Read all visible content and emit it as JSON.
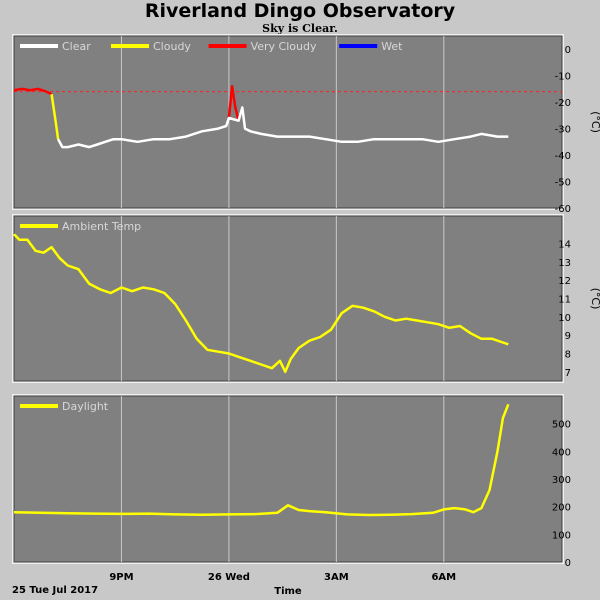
{
  "title": "Riverland Dingo Observatory",
  "subtitle": "Sky is Clear.",
  "date_label": "25 Tue Jul 2017",
  "x_axis_title": "Time",
  "colors": {
    "panel": "#808080",
    "grid": "#c8c8c8",
    "threshold": "#ff2020",
    "clear": "#ffffff",
    "cloudy": "#ffff00",
    "very_cloudy": "#ff0000",
    "wet": "#0000ff"
  },
  "chart_data": [
    {
      "type": "line",
      "panel": "sky",
      "ylim": [
        -60,
        5
      ],
      "yticks": [
        0,
        -10,
        -20,
        -30,
        -40,
        -50,
        -60
      ],
      "ylabel": "(°C)",
      "xlim": [
        0,
        10.2
      ],
      "xticks": [
        {
          "x": 2,
          "label": "9PM"
        },
        {
          "x": 4,
          "label": "26 Wed"
        },
        {
          "x": 6,
          "label": "3AM"
        },
        {
          "x": 8,
          "label": "6AM"
        }
      ],
      "legend": [
        "Clear",
        "Cloudy",
        "Very Cloudy",
        "Wet"
      ],
      "threshold": -16,
      "series": [
        {
          "name": "Very Cloudy",
          "color": "#ff0000",
          "x": [
            0.0,
            0.15,
            0.3,
            0.45,
            0.6,
            0.7
          ],
          "y": [
            -15.5,
            -15.0,
            -15.5,
            -15.0,
            -16.0,
            -17.0
          ]
        },
        {
          "name": "Very Cloudy",
          "color": "#ff0000",
          "x": [
            4.0,
            4.06,
            4.12,
            4.18
          ],
          "y": [
            -26.0,
            -14.0,
            -22.0,
            -27.0
          ]
        },
        {
          "name": "Cloudy",
          "color": "#ffff00",
          "x": [
            0.7,
            0.78,
            0.82
          ],
          "y": [
            -17.0,
            -28.0,
            -34.0
          ]
        },
        {
          "name": "Clear",
          "color": "#ffffff",
          "x": [
            0.82,
            0.9,
            1.0,
            1.2,
            1.4,
            1.55,
            1.7,
            1.85,
            2.0,
            2.3,
            2.6,
            2.9,
            3.2,
            3.5,
            3.8,
            3.95,
            4.0,
            4.18,
            4.25,
            4.3,
            4.4,
            4.6,
            4.9,
            5.2,
            5.5,
            5.8,
            6.1,
            6.4,
            6.7,
            7.0,
            7.3,
            7.6,
            7.9,
            8.2,
            8.5,
            8.7,
            9.0,
            9.2
          ],
          "y": [
            -34,
            -37,
            -37,
            -36,
            -37,
            -36,
            -35,
            -34,
            -34,
            -35,
            -34,
            -34,
            -33,
            -31,
            -30,
            -29,
            -26,
            -27,
            -22,
            -30,
            -31,
            -32,
            -33,
            -33,
            -33,
            -34,
            -35,
            -35,
            -34,
            -34,
            -34,
            -34,
            -35,
            -34,
            -33,
            -32,
            -33,
            -33
          ]
        }
      ]
    },
    {
      "type": "line",
      "panel": "ambient",
      "ylim": [
        6.5,
        15.5
      ],
      "yticks": [
        7,
        8,
        9,
        10,
        11,
        12,
        13,
        14
      ],
      "ylabel": "(°C)",
      "xlim": [
        0,
        10.2
      ],
      "legend": [
        "Ambient Temp"
      ],
      "series": [
        {
          "name": "Ambient Temp",
          "color": "#ffff00",
          "x": [
            0.0,
            0.1,
            0.25,
            0.4,
            0.55,
            0.7,
            0.85,
            1.0,
            1.2,
            1.4,
            1.6,
            1.8,
            2.0,
            2.2,
            2.4,
            2.6,
            2.8,
            3.0,
            3.2,
            3.4,
            3.6,
            3.8,
            4.0,
            4.2,
            4.4,
            4.6,
            4.8,
            4.95,
            5.05,
            5.15,
            5.3,
            5.5,
            5.7,
            5.9,
            6.1,
            6.3,
            6.5,
            6.7,
            6.9,
            7.1,
            7.3,
            7.5,
            7.7,
            7.9,
            8.1,
            8.3,
            8.5,
            8.7,
            8.9,
            9.1,
            9.2
          ],
          "y": [
            14.5,
            14.2,
            14.2,
            13.6,
            13.5,
            13.8,
            13.2,
            12.8,
            12.6,
            11.8,
            11.5,
            11.3,
            11.6,
            11.4,
            11.6,
            11.5,
            11.3,
            10.7,
            9.8,
            8.8,
            8.2,
            8.1,
            8.0,
            7.8,
            7.6,
            7.4,
            7.2,
            7.6,
            7.0,
            7.7,
            8.3,
            8.7,
            8.9,
            9.3,
            10.2,
            10.6,
            10.5,
            10.3,
            10.0,
            9.8,
            9.9,
            9.8,
            9.7,
            9.6,
            9.4,
            9.5,
            9.1,
            8.8,
            8.8,
            8.6,
            8.5
          ]
        }
      ]
    },
    {
      "type": "line",
      "panel": "daylight",
      "ylim": [
        0,
        600
      ],
      "yticks": [
        0,
        100,
        200,
        300,
        400,
        500
      ],
      "xlim": [
        0,
        10.2
      ],
      "legend": [
        "Daylight"
      ],
      "series": [
        {
          "name": "Daylight",
          "color": "#ffff00",
          "x": [
            0.0,
            0.5,
            1.0,
            1.5,
            2.0,
            2.5,
            3.0,
            3.5,
            4.0,
            4.5,
            4.9,
            5.1,
            5.3,
            5.5,
            5.8,
            6.2,
            6.6,
            7.0,
            7.4,
            7.8,
            8.0,
            8.2,
            8.4,
            8.55,
            8.7,
            8.85,
            9.0,
            9.1,
            9.2
          ],
          "y": [
            180,
            178,
            176,
            175,
            174,
            175,
            172,
            171,
            172,
            173,
            178,
            205,
            188,
            184,
            180,
            172,
            170,
            171,
            173,
            178,
            190,
            195,
            190,
            180,
            195,
            260,
            400,
            520,
            570
          ]
        }
      ]
    }
  ]
}
